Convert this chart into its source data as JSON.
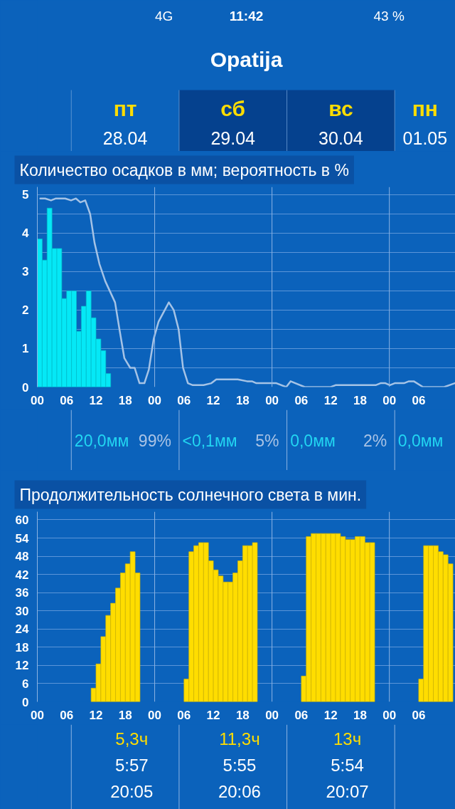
{
  "chart_data": [
    {
      "type": "other",
      "title": "Opatija",
      "annotations": [
        "11:42",
        "4G",
        "43 %",
        "пт",
        "28.04",
        "сб",
        "29.04",
        "вс",
        "30.04",
        "пн",
        "01.05"
      ]
    },
    {
      "type": "bar",
      "title": "Количество осадков в мм; вероятность в %",
      "xlim": [
        0,
        85.5
      ],
      "ylim": [
        0,
        5.2
      ],
      "xticks": [
        {
          "value": 0,
          "label": "00"
        },
        {
          "value": 6,
          "label": "06"
        },
        12,
        18,
        {
          "value": 24,
          "label": "00"
        },
        {
          "value": 30,
          "label": "06"
        },
        {
          "value": 36,
          "label": "12"
        },
        {
          "value": 42,
          "label": "18"
        },
        {
          "value": 48,
          "label": "00"
        },
        {
          "value": 54,
          "label": "06"
        },
        {
          "value": 60,
          "label": "12"
        },
        {
          "value": 66,
          "label": "18"
        },
        {
          "value": 72,
          "label": "00"
        },
        {
          "value": 78,
          "label": "06"
        }
      ],
      "yticks": [
        0,
        {
          "value": 0.5,
          "label": null
        },
        1,
        {
          "value": 1.5,
          "label": null
        },
        2,
        {
          "value": 2.5,
          "label": null
        },
        3,
        {
          "value": 3.5,
          "label": null
        },
        4,
        {
          "value": 4.5,
          "label": null
        },
        5
      ],
      "grid": "y",
      "ref_lines": [
        {
          "axis": "x",
          "value": 24
        },
        {
          "axis": "x",
          "value": 48
        },
        {
          "axis": "x",
          "value": 72
        }
      ],
      "series": [
        {
          "type": "bar",
          "color": "#05e8f6",
          "x": [
            0.5,
            1.5,
            2.5,
            3.5,
            4.5,
            5.5,
            6.5,
            7.5,
            8.5,
            9.5,
            10.5,
            11.5,
            12.5,
            13.5,
            14.5
          ],
          "values": [
            3.85,
            3.3,
            4.65,
            3.6,
            3.6,
            2.3,
            2.5,
            2.5,
            1.45,
            2.1,
            2.5,
            1.8,
            1.25,
            0.95,
            0.35
          ]
        },
        {
          "type": "line",
          "color": "#a5c3e6",
          "x": [
            0.6,
            1.6,
            2.8,
            3.8,
            5.7,
            6.9,
            7.9,
            8.8,
            9.8,
            10.8,
            11.7,
            12.7,
            13.9,
            15.9,
            16.8,
            17.8,
            19.0,
            19.9,
            20.9,
            21.9,
            22.8,
            23.8,
            24.8,
            26.9,
            27.9,
            28.9,
            29.8,
            30.8,
            31.8,
            34.0,
            35.6,
            36.6,
            41.0,
            42.9,
            43.9,
            44.8,
            48.9,
            50.9,
            51.8,
            54.7,
            60.0,
            61.0,
            69.2,
            70.2,
            71.2,
            72.1,
            73.1,
            75.0,
            76.0,
            77.0,
            78.9,
            83.2,
            85.4
          ],
          "values": [
            4.9,
            4.9,
            4.85,
            4.9,
            4.9,
            4.85,
            4.9,
            4.8,
            4.85,
            4.5,
            3.75,
            3.2,
            2.75,
            2.2,
            1.5,
            0.75,
            0.5,
            0.5,
            0.1,
            0.1,
            0.45,
            1.25,
            1.7,
            2.2,
            2.0,
            1.5,
            0.5,
            0.1,
            0.05,
            0.05,
            0.1,
            0.2,
            0.2,
            0.15,
            0.15,
            0.1,
            0.1,
            0,
            0.15,
            0,
            0,
            0.05,
            0.05,
            0.1,
            0.1,
            0.05,
            0.1,
            0.1,
            0.15,
            0.15,
            0,
            0,
            0.1
          ]
        }
      ],
      "annotations": [
        "20,0мм",
        "99%",
        "<0,1мм",
        "5%",
        "0,0мм",
        "2%",
        "0,0мм"
      ]
    },
    {
      "type": "bar",
      "title": "Продолжительность солнечного света в мин.",
      "xlim": [
        0,
        85.5
      ],
      "ylim": [
        0,
        62.7
      ],
      "xticks": [
        {
          "value": 0,
          "label": "00"
        },
        {
          "value": 6,
          "label": "06"
        },
        12,
        18,
        {
          "value": 24,
          "label": "00"
        },
        {
          "value": 30,
          "label": "06"
        },
        {
          "value": 36,
          "label": "12"
        },
        {
          "value": 42,
          "label": "18"
        },
        {
          "value": 48,
          "label": "00"
        },
        {
          "value": 54,
          "label": "06"
        },
        {
          "value": 60,
          "label": "12"
        },
        {
          "value": 66,
          "label": "18"
        },
        {
          "value": 72,
          "label": "00"
        },
        {
          "value": 78,
          "label": "06"
        }
      ],
      "yticks": [
        0,
        6,
        12,
        18,
        24,
        30,
        36,
        42,
        48,
        54,
        60
      ],
      "grid": "y",
      "ref_lines": [
        {
          "axis": "x",
          "value": 24
        },
        {
          "axis": "x",
          "value": 48
        },
        {
          "axis": "x",
          "value": 72
        }
      ],
      "series": [
        {
          "type": "bar",
          "color": "#ffdd00",
          "x": [
            11.5,
            12.5,
            13.5,
            14.5,
            15.5,
            16.5,
            17.5,
            18.5,
            19.5,
            20.5,
            30.5,
            31.5,
            32.5,
            33.5,
            34.5,
            35.5,
            36.5,
            37.5,
            38.5,
            39.5,
            40.5,
            41.5,
            42.5,
            43.5,
            44.5,
            54.5,
            55.5,
            56.5,
            57.5,
            58.5,
            59.5,
            60.5,
            61.5,
            62.5,
            63.5,
            64.5,
            65.5,
            66.5,
            67.5,
            68.5,
            78.5,
            79.5,
            80.5,
            81.5,
            82.5,
            83.5,
            84.5
          ],
          "values": [
            4.5,
            12.5,
            21.5,
            28.5,
            32.5,
            37.5,
            42.5,
            45.5,
            49.5,
            42.5,
            7.5,
            49.5,
            51.5,
            52.5,
            52.5,
            46.5,
            43.5,
            41.5,
            39.5,
            39.5,
            42.5,
            46.5,
            51.5,
            51.5,
            52.5,
            8.5,
            54.5,
            55.5,
            55.5,
            55.5,
            55.5,
            55.5,
            55.5,
            54.5,
            53.5,
            53.5,
            54.5,
            54.5,
            52.5,
            52.5,
            7.5,
            51.5,
            51.5,
            51.5,
            49.5,
            48.5,
            45.5
          ]
        }
      ],
      "annotations": [
        "5,3ч",
        "5:57",
        "20:05",
        "11,3ч",
        "5:55",
        "20:06",
        "13ч",
        "5:54",
        "20:07"
      ]
    }
  ]
}
